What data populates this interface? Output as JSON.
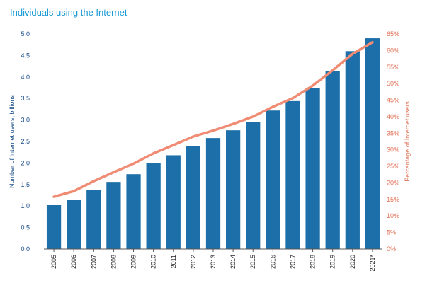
{
  "chart_data": {
    "type": "bar",
    "title": "Individuals using the Internet",
    "xlabel": "",
    "ylabel": "Number of Internet users, billions",
    "y2label": "Percentage of Internet users",
    "ylim": [
      0,
      5.0
    ],
    "y2lim": [
      0,
      65
    ],
    "y_ticks": [
      "0.0",
      "0.5",
      "1.0",
      "1.5",
      "2.0",
      "2.5",
      "3.0",
      "3.5",
      "4.0",
      "4.5",
      "5.0"
    ],
    "y2_ticks": [
      "0%",
      "5%",
      "10%",
      "15%",
      "20%",
      "25%",
      "30%",
      "35%",
      "40%",
      "45%",
      "50%",
      "55%",
      "60%",
      "65%"
    ],
    "categories": [
      "2005",
      "2006",
      "2007",
      "2008",
      "2009",
      "2010",
      "2011",
      "2012",
      "2013",
      "2014",
      "2015",
      "2016",
      "2017",
      "2018",
      "2019",
      "2020",
      "2021*"
    ],
    "series": [
      {
        "kind": "bar",
        "axis": "left",
        "color": "#1c6fa8",
        "values": [
          1.02,
          1.15,
          1.38,
          1.56,
          1.74,
          1.99,
          2.18,
          2.39,
          2.58,
          2.76,
          2.96,
          3.22,
          3.44,
          3.75,
          4.14,
          4.6,
          4.9
        ]
      },
      {
        "kind": "line",
        "axis": "right",
        "color": "#f08c73",
        "values": [
          15.8,
          17.5,
          20.5,
          23.2,
          25.8,
          28.9,
          31.4,
          34.0,
          35.8,
          37.8,
          40.0,
          43.0,
          45.6,
          49.4,
          54.0,
          59.0,
          62.5
        ]
      }
    ],
    "grid": false,
    "legend": "none"
  }
}
